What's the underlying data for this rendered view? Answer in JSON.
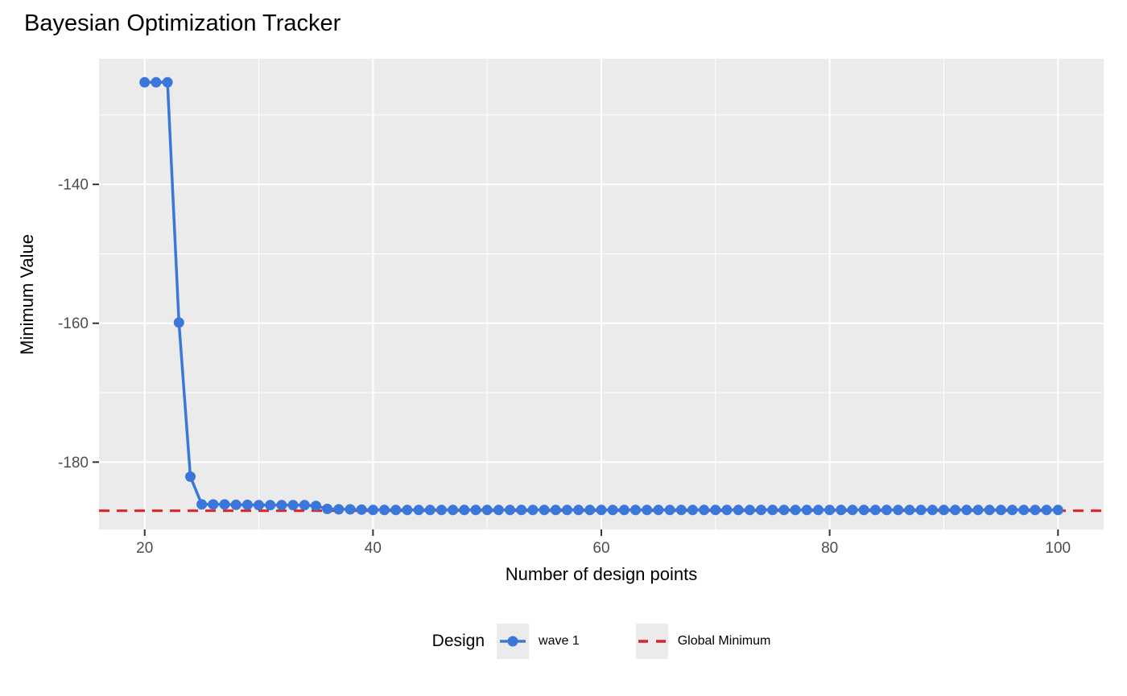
{
  "chart": {
    "title": "Bayesian Optimization Tracker",
    "xlabel": "Number of design points",
    "ylabel": "Minimum Value"
  },
  "legend": {
    "title": "Design",
    "entries": [
      {
        "label": "wave 1",
        "type": "point-line",
        "color": "#3B77DB"
      },
      {
        "label": "Global Minimum",
        "type": "dashed-line",
        "color": "#DC2026"
      }
    ],
    "key_bg": "#EBEBEB"
  },
  "chart_data": {
    "type": "line",
    "title": "Bayesian Optimization Tracker",
    "xlabel": "Number of design points",
    "ylabel": "Minimum Value",
    "xlim": [
      16,
      104
    ],
    "ylim": [
      -189.7,
      -121.9
    ],
    "x_ticks": [
      20,
      40,
      60,
      80,
      100
    ],
    "x_minor_ticks": [
      30,
      50,
      70,
      90
    ],
    "y_ticks": [
      -140,
      -160,
      -180
    ],
    "y_minor_ticks": [
      -130,
      -150,
      -170,
      -190
    ],
    "grid": true,
    "legend_position": "bottom",
    "panel_bg": "#EBEBEB",
    "grid_color": "#FFFFFF",
    "tick_mark_color": "#333333",
    "tick_label_color": "#4D4D4D",
    "series": [
      {
        "name": "wave 1",
        "type": "line+points",
        "color": "#3B77DB",
        "x": [
          20,
          21,
          22,
          23,
          24,
          25,
          26,
          27,
          28,
          29,
          30,
          31,
          32,
          33,
          34,
          35,
          36,
          37,
          38,
          39,
          40,
          41,
          42,
          43,
          44,
          45,
          46,
          47,
          48,
          49,
          50,
          51,
          52,
          53,
          54,
          55,
          56,
          57,
          58,
          59,
          60,
          61,
          62,
          63,
          64,
          65,
          66,
          67,
          68,
          69,
          70,
          71,
          72,
          73,
          74,
          75,
          76,
          77,
          78,
          79,
          80,
          81,
          82,
          83,
          84,
          85,
          86,
          87,
          88,
          89,
          90,
          91,
          92,
          93,
          94,
          95,
          96,
          97,
          98,
          99,
          100
        ],
        "y": [
          -125.3,
          -125.3,
          -125.3,
          -159.9,
          -182.1,
          -186.1,
          -186.1,
          -186.1,
          -186.15,
          -186.15,
          -186.2,
          -186.2,
          -186.2,
          -186.2,
          -186.2,
          -186.3,
          -186.75,
          -186.8,
          -186.8,
          -186.85,
          -186.9,
          -186.9,
          -186.9,
          -186.9,
          -186.9,
          -186.9,
          -186.9,
          -186.9,
          -186.9,
          -186.9,
          -186.9,
          -186.9,
          -186.9,
          -186.9,
          -186.9,
          -186.9,
          -186.9,
          -186.9,
          -186.9,
          -186.9,
          -186.9,
          -186.9,
          -186.9,
          -186.9,
          -186.9,
          -186.9,
          -186.9,
          -186.9,
          -186.9,
          -186.9,
          -186.9,
          -186.9,
          -186.9,
          -186.9,
          -186.9,
          -186.9,
          -186.9,
          -186.9,
          -186.9,
          -186.9,
          -186.9,
          -186.9,
          -186.9,
          -186.9,
          -186.9,
          -186.9,
          -186.9,
          -186.9,
          -186.9,
          -186.9,
          -186.9,
          -186.9,
          -186.9,
          -186.9,
          -186.9,
          -186.9,
          -186.9,
          -186.9,
          -186.9,
          -186.9,
          -186.9
        ]
      },
      {
        "name": "Global Minimum",
        "type": "hline-dashed",
        "color": "#DC2026",
        "y": -187.0
      }
    ]
  }
}
